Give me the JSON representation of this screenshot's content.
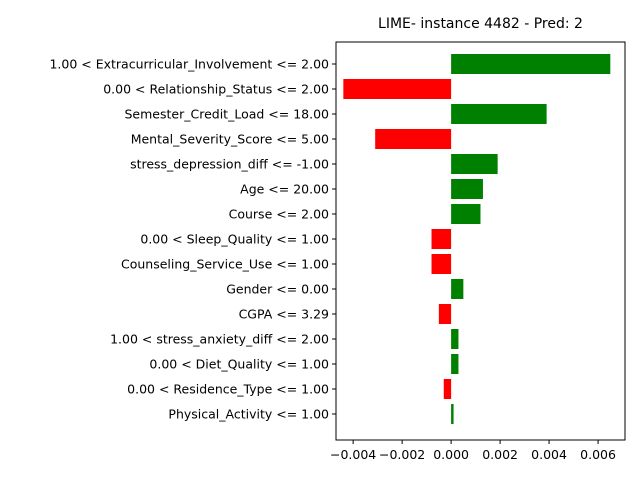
{
  "chart_data": {
    "type": "bar",
    "orientation": "horizontal",
    "title": "LIME- instance 4482 - Pred: 2",
    "xlabel": "",
    "ylabel": "",
    "xlim": [
      -0.0047,
      0.0071
    ],
    "xticks": [
      -0.004,
      -0.002,
      0.0,
      0.002,
      0.004,
      0.006
    ],
    "xtick_labels": [
      "−0.004",
      "−0.002",
      "0.000",
      "0.002",
      "0.004",
      "0.006"
    ],
    "grid": false,
    "positive_color": "#008000",
    "negative_color": "#ff0000",
    "categories": [
      "1.00 < Extracurricular_Involvement <= 2.00",
      "0.00 < Relationship_Status <= 2.00",
      "Semester_Credit_Load <= 18.00",
      "Mental_Severity_Score <= 5.00",
      "stress_depression_diff <= -1.00",
      "Age <= 20.00",
      "Course <= 2.00",
      "0.00 < Sleep_Quality <= 1.00",
      "Counseling_Service_Use <= 1.00",
      "Gender <= 0.00",
      "CGPA <= 3.29",
      "1.00 < stress_anxiety_diff <= 2.00",
      "0.00 < Diet_Quality <= 1.00",
      "0.00 < Residence_Type <= 1.00",
      "Physical_Activity <= 1.00"
    ],
    "values": [
      0.0065,
      -0.0044,
      0.0039,
      -0.0031,
      0.0019,
      0.0013,
      0.0012,
      -0.0008,
      -0.0008,
      0.0005,
      -0.0005,
      0.0003,
      0.0003,
      -0.0003,
      0.0001
    ]
  }
}
